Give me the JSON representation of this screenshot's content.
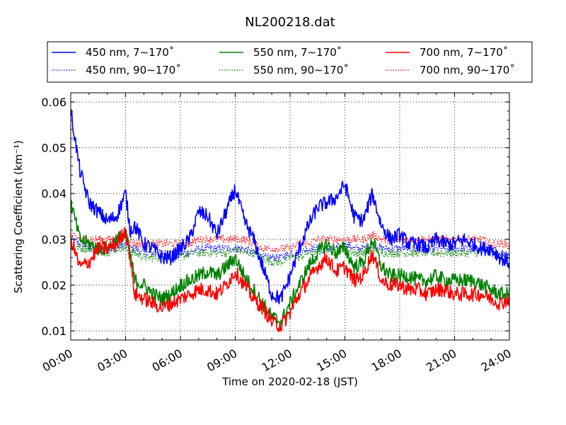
{
  "chart_data": {
    "type": "line",
    "title": "NL200218.dat",
    "xlabel": "Time on 2020-02-18 (JST)",
    "ylabel": "Scattering Coefficient (km⁻¹)",
    "xlim": [
      "00:00",
      "24:00"
    ],
    "ylim": [
      0.008,
      0.062
    ],
    "x_ticks": [
      "00:00",
      "03:00",
      "06:00",
      "09:00",
      "12:00",
      "15:00",
      "18:00",
      "21:00",
      "24:00"
    ],
    "y_ticks": [
      0.01,
      0.02,
      0.03,
      0.04,
      0.05,
      0.06
    ],
    "y_tick_labels": [
      "0.01",
      "0.02",
      "0.03",
      "0.04",
      "0.05",
      "0.06"
    ],
    "grid": true,
    "legend_placement": "top, above plot",
    "x_hours": [
      0,
      0.5,
      1,
      1.5,
      2,
      2.5,
      3,
      3.25,
      3.5,
      4,
      4.5,
      5,
      5.5,
      6,
      6.5,
      7,
      7.5,
      8,
      8.5,
      9,
      9.5,
      10,
      10.5,
      11,
      11.5,
      12,
      12.5,
      13,
      13.5,
      14,
      14.5,
      15,
      15.5,
      16,
      16.5,
      17,
      17.5,
      18,
      18.5,
      19,
      19.5,
      20,
      20.5,
      21,
      21.5,
      22,
      22.5,
      23,
      23.5,
      24
    ],
    "series": [
      {
        "name": "450 nm, 7∼170˚",
        "color": "#0000ff",
        "style": "solid",
        "values": [
          0.058,
          0.045,
          0.038,
          0.036,
          0.034,
          0.035,
          0.04,
          0.032,
          0.033,
          0.029,
          0.028,
          0.026,
          0.026,
          0.028,
          0.03,
          0.036,
          0.035,
          0.031,
          0.036,
          0.041,
          0.034,
          0.03,
          0.024,
          0.018,
          0.017,
          0.022,
          0.028,
          0.033,
          0.037,
          0.038,
          0.039,
          0.042,
          0.035,
          0.034,
          0.04,
          0.033,
          0.03,
          0.031,
          0.029,
          0.029,
          0.028,
          0.03,
          0.029,
          0.029,
          0.03,
          0.029,
          0.028,
          0.028,
          0.026,
          0.025
        ]
      },
      {
        "name": "450 nm, 90∼170˚",
        "color": "#0000ff",
        "style": "dotted",
        "values": [
          0.03,
          0.029,
          0.028,
          0.028,
          0.028,
          0.028,
          0.029,
          0.028,
          0.028,
          0.027,
          0.027,
          0.027,
          0.027,
          0.027,
          0.027,
          0.028,
          0.028,
          0.028,
          0.028,
          0.028,
          0.028,
          0.027,
          0.026,
          0.026,
          0.026,
          0.027,
          0.027,
          0.028,
          0.028,
          0.028,
          0.028,
          0.029,
          0.028,
          0.028,
          0.029,
          0.028,
          0.028,
          0.028,
          0.028,
          0.028,
          0.028,
          0.028,
          0.028,
          0.028,
          0.028,
          0.028,
          0.028,
          0.028,
          0.027,
          0.027
        ]
      },
      {
        "name": "550 nm, 7∼170˚",
        "color": "#008000",
        "style": "solid",
        "values": [
          0.038,
          0.03,
          0.029,
          0.028,
          0.028,
          0.03,
          0.031,
          0.027,
          0.021,
          0.02,
          0.018,
          0.017,
          0.018,
          0.02,
          0.021,
          0.022,
          0.023,
          0.022,
          0.024,
          0.026,
          0.022,
          0.019,
          0.016,
          0.013,
          0.012,
          0.016,
          0.02,
          0.024,
          0.027,
          0.029,
          0.027,
          0.028,
          0.024,
          0.025,
          0.03,
          0.024,
          0.022,
          0.022,
          0.022,
          0.021,
          0.021,
          0.022,
          0.021,
          0.021,
          0.021,
          0.021,
          0.02,
          0.019,
          0.018,
          0.018
        ]
      },
      {
        "name": "550 nm, 90∼170˚",
        "color": "#008000",
        "style": "dotted",
        "values": [
          0.029,
          0.028,
          0.028,
          0.028,
          0.027,
          0.028,
          0.028,
          0.027,
          0.027,
          0.026,
          0.026,
          0.026,
          0.026,
          0.026,
          0.027,
          0.027,
          0.027,
          0.027,
          0.027,
          0.028,
          0.027,
          0.027,
          0.026,
          0.025,
          0.025,
          0.026,
          0.026,
          0.027,
          0.027,
          0.028,
          0.027,
          0.028,
          0.027,
          0.027,
          0.028,
          0.027,
          0.027,
          0.027,
          0.027,
          0.027,
          0.027,
          0.027,
          0.027,
          0.027,
          0.027,
          0.027,
          0.027,
          0.027,
          0.026,
          0.026
        ]
      },
      {
        "name": "700 nm, 7∼170˚",
        "color": "#ff0000",
        "style": "solid",
        "values": [
          0.03,
          0.024,
          0.025,
          0.028,
          0.028,
          0.029,
          0.032,
          0.026,
          0.018,
          0.017,
          0.016,
          0.015,
          0.016,
          0.017,
          0.018,
          0.019,
          0.019,
          0.018,
          0.02,
          0.023,
          0.02,
          0.017,
          0.015,
          0.012,
          0.011,
          0.014,
          0.018,
          0.021,
          0.024,
          0.026,
          0.023,
          0.024,
          0.021,
          0.022,
          0.027,
          0.021,
          0.02,
          0.02,
          0.019,
          0.019,
          0.018,
          0.019,
          0.019,
          0.018,
          0.018,
          0.018,
          0.018,
          0.017,
          0.016,
          0.017
        ]
      },
      {
        "name": "700 nm, 90∼170˚",
        "color": "#ff0000",
        "style": "dotted",
        "values": [
          0.031,
          0.03,
          0.03,
          0.03,
          0.03,
          0.03,
          0.031,
          0.03,
          0.029,
          0.029,
          0.029,
          0.029,
          0.029,
          0.029,
          0.029,
          0.03,
          0.03,
          0.03,
          0.03,
          0.03,
          0.03,
          0.029,
          0.028,
          0.028,
          0.028,
          0.028,
          0.029,
          0.029,
          0.03,
          0.03,
          0.03,
          0.03,
          0.03,
          0.03,
          0.031,
          0.03,
          0.03,
          0.03,
          0.03,
          0.03,
          0.03,
          0.03,
          0.03,
          0.03,
          0.03,
          0.03,
          0.03,
          0.029,
          0.029,
          0.029
        ]
      }
    ]
  }
}
